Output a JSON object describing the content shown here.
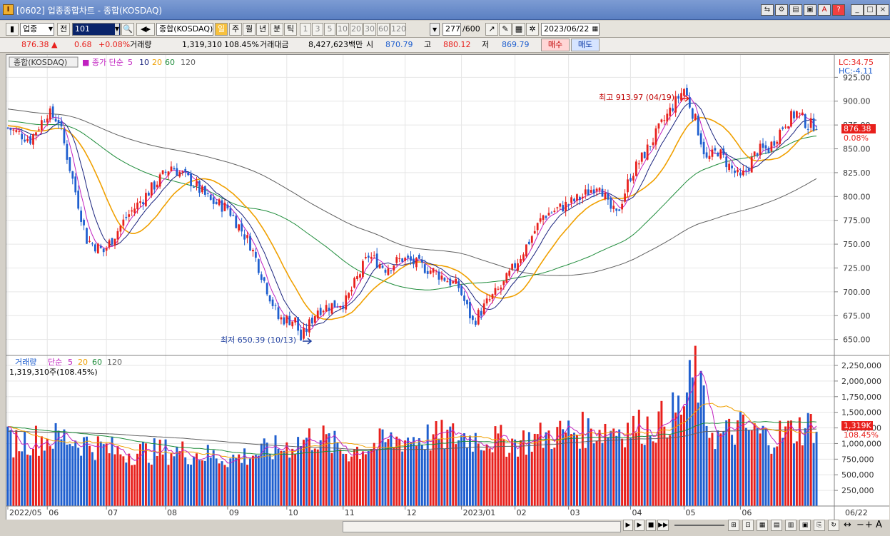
{
  "window": {
    "title": "[0602] 업종종합차트 - 종합(KOSDAQ)"
  },
  "toolbar": {
    "category": "업종",
    "market_btn": "전",
    "code": "101",
    "name": "종합(KOSDAQ)",
    "periods": [
      "일",
      "주",
      "월",
      "년",
      "분",
      "틱"
    ],
    "intervals": [
      "1",
      "3",
      "5",
      "10",
      "20",
      "30",
      "60",
      "120"
    ],
    "count": "277",
    "count_total": "/600",
    "date": "2023/06/22"
  },
  "quote": {
    "price": "876.38",
    "change": "0.68",
    "change_pct": "+0.08%",
    "volume_label": "거래량",
    "volume": "1,319,310",
    "volume_pct": "108.45%",
    "value_label": "거래대금",
    "value": "8,427,623백만",
    "open_label": "시",
    "open": "870.79",
    "high_label": "고",
    "high": "880.12",
    "low_label": "저",
    "low": "869.79",
    "buy": "매수",
    "sell": "매도"
  },
  "price_panel": {
    "legend_name": "종합(KOSDAQ)",
    "legend_ma": "종가 단순",
    "ma_periods": [
      "5",
      "10",
      "20",
      "60",
      "120"
    ],
    "lc": "LC:34.75",
    "hc": "HC:-4.11",
    "max_label": "최고 913.97 (04/19)",
    "min_label": "최저 650.39 (10/13)",
    "current_price": "876.38",
    "current_pct": "0.08%",
    "y_ticks": [
      "925.00",
      "900.00",
      "875.00",
      "850.00",
      "825.00",
      "800.00",
      "775.00",
      "750.00",
      "725.00",
      "700.00",
      "675.00",
      "650.00"
    ]
  },
  "volume_panel": {
    "legend_name": "거래량",
    "legend_ma": "단순",
    "ma_periods": [
      "5",
      "20",
      "60",
      "120"
    ],
    "value_label": "1,319,310주(108.45%)",
    "current": "1,319K",
    "current_pct": "108.45%",
    "y_ticks": [
      "2,250,000",
      "2,000,000",
      "1,750,000",
      "1,500,000",
      "1,250,000",
      "1,000,000",
      "750,000",
      "500,000",
      "250,000"
    ]
  },
  "x_axis": {
    "labels": [
      "2022/05",
      "06",
      "07",
      "08",
      "09",
      "10",
      "11",
      "12",
      "2023/01",
      "02",
      "03",
      "04",
      "05",
      "06"
    ],
    "last": "06/22"
  },
  "colors": {
    "up": "#e8201c",
    "down": "#1f5fcf",
    "ma5": "#c020c0",
    "ma10": "#1a237e",
    "ma20": "#f0a000",
    "ma60": "#1e8c3a",
    "ma120": "#606060"
  },
  "chart_data": {
    "type": "candlestick",
    "price_range": [
      640,
      935
    ],
    "price_anchors": [
      [
        0,
        872
      ],
      [
        8,
        860
      ],
      [
        14,
        888
      ],
      [
        18,
        880
      ],
      [
        22,
        830
      ],
      [
        28,
        755
      ],
      [
        34,
        742
      ],
      [
        42,
        778
      ],
      [
        58,
        832
      ],
      [
        65,
        816
      ],
      [
        72,
        795
      ],
      [
        78,
        788
      ],
      [
        86,
        750
      ],
      [
        96,
        672
      ],
      [
        102,
        670
      ],
      [
        104,
        650
      ],
      [
        110,
        682
      ],
      [
        120,
        690
      ],
      [
        128,
        738
      ],
      [
        134,
        725
      ],
      [
        140,
        735
      ],
      [
        146,
        728
      ],
      [
        152,
        720
      ],
      [
        160,
        705
      ],
      [
        165,
        668
      ],
      [
        170,
        688
      ],
      [
        176,
        708
      ],
      [
        184,
        748
      ],
      [
        190,
        780
      ],
      [
        196,
        788
      ],
      [
        204,
        800
      ],
      [
        210,
        815
      ],
      [
        213,
        790
      ],
      [
        216,
        780
      ],
      [
        221,
        822
      ],
      [
        226,
        845
      ],
      [
        232,
        875
      ],
      [
        236,
        895
      ],
      [
        240,
        913
      ],
      [
        244,
        880
      ],
      [
        248,
        838
      ],
      [
        252,
        848
      ],
      [
        256,
        832
      ],
      [
        260,
        818
      ],
      [
        266,
        848
      ],
      [
        270,
        850
      ],
      [
        276,
        878
      ],
      [
        280,
        888
      ],
      [
        284,
        875
      ],
      [
        287,
        876
      ]
    ],
    "volume_range": [
      0,
      2250000
    ],
    "volume_anchors": [
      [
        0,
        1030000
      ],
      [
        20,
        1100000
      ],
      [
        40,
        860000
      ],
      [
        60,
        880000
      ],
      [
        80,
        760000
      ],
      [
        96,
        920000
      ],
      [
        110,
        1120000
      ],
      [
        120,
        870000
      ],
      [
        140,
        1080000
      ],
      [
        160,
        1120000
      ],
      [
        180,
        1020000
      ],
      [
        200,
        1200000
      ],
      [
        220,
        1250000
      ],
      [
        230,
        1300000
      ],
      [
        240,
        1600000
      ],
      [
        244,
        2200000
      ],
      [
        248,
        1350000
      ],
      [
        252,
        1100000
      ],
      [
        260,
        1250000
      ],
      [
        270,
        1100000
      ],
      [
        287,
        1319310
      ]
    ]
  }
}
